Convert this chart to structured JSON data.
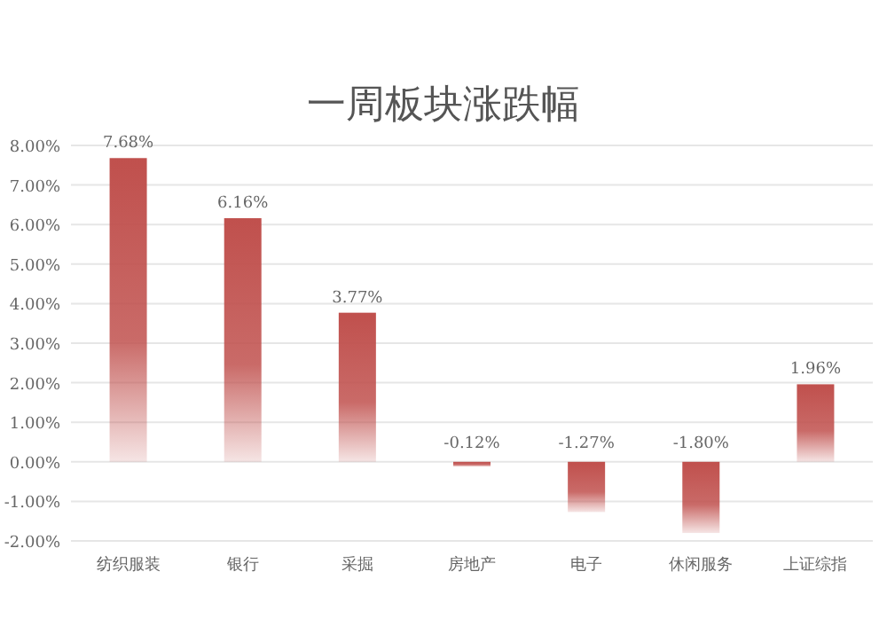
{
  "chart_data": {
    "type": "bar",
    "title": "一周板块涨跌幅",
    "categories": [
      "纺织服装",
      "银行",
      "采掘",
      "房地产",
      "电子",
      "休闲服务",
      "上证综指"
    ],
    "values": [
      7.68,
      6.16,
      3.77,
      -0.12,
      -1.27,
      -1.8,
      1.96
    ],
    "value_labels": [
      "7.68%",
      "6.16%",
      "3.77%",
      "-0.12%",
      "-1.27%",
      "-1.80%",
      "1.96%"
    ],
    "color": "#c0504d",
    "ylim": [
      -2,
      8
    ],
    "yticks": [
      {
        "value": -2,
        "label": "-2.00%"
      },
      {
        "value": -1,
        "label": "-1.00%"
      },
      {
        "value": 0,
        "label": "0.00%"
      },
      {
        "value": 1,
        "label": "1.00%"
      },
      {
        "value": 2,
        "label": "2.00%"
      },
      {
        "value": 3,
        "label": "3.00%"
      },
      {
        "value": 4,
        "label": "4.00%"
      },
      {
        "value": 5,
        "label": "5.00%"
      },
      {
        "value": 6,
        "label": "6.00%"
      },
      {
        "value": 7,
        "label": "7.00%"
      },
      {
        "value": 8,
        "label": "8.00%"
      }
    ],
    "grid": "y"
  }
}
